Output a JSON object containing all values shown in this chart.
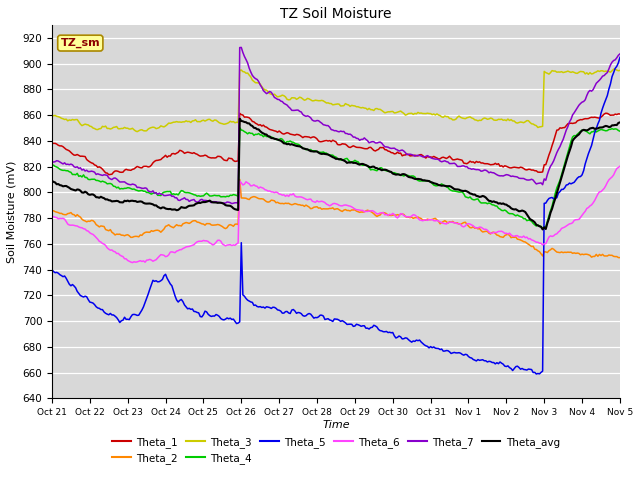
{
  "title": "TZ Soil Moisture",
  "xlabel": "Time",
  "ylabel": "Soil Moisture (mV)",
  "ylim": [
    640,
    930
  ],
  "xlim": [
    0,
    360
  ],
  "background_color": "#d8d8d8",
  "fig_color": "#ffffff",
  "label_box": "TZ_sm",
  "label_box_color": "#ffff99",
  "label_box_edge": "#aa8800",
  "series_colors": {
    "Theta_1": "#cc0000",
    "Theta_2": "#ff8800",
    "Theta_3": "#cccc00",
    "Theta_4": "#00cc00",
    "Theta_5": "#0000ee",
    "Theta_6": "#ff44ff",
    "Theta_7": "#8800cc",
    "Theta_avg": "#000000"
  },
  "xtick_labels": [
    "Oct 21",
    "Oct 22",
    "Oct 23",
    "Oct 24",
    "Oct 25",
    "Oct 26",
    "Oct 27",
    "Oct 28",
    "Oct 29",
    "Oct 30",
    "Oct 31",
    "Nov 1",
    "Nov 2",
    "Nov 3",
    "Nov 4",
    "Nov 5"
  ],
  "xtick_positions": [
    0,
    24,
    48,
    72,
    96,
    120,
    144,
    168,
    192,
    216,
    240,
    264,
    288,
    312,
    336,
    360
  ]
}
